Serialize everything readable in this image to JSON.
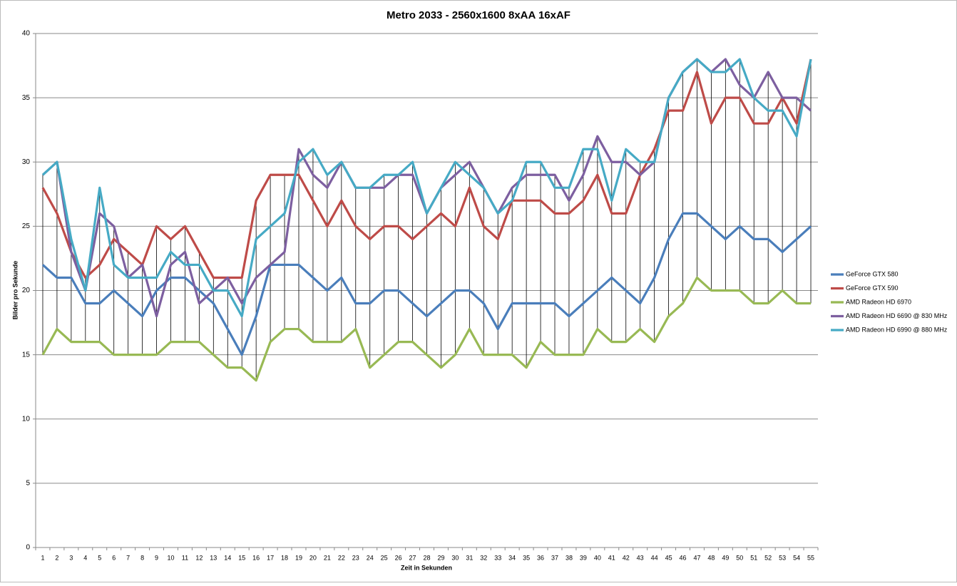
{
  "chart_data": {
    "type": "line",
    "title": "Metro 2033 - 2560x1600 8xAA 16xAF",
    "x_label": "Zeit in Sekunden",
    "y_label": "Bilder pro Sekunde",
    "categories": [
      1,
      2,
      3,
      4,
      5,
      6,
      7,
      8,
      9,
      10,
      11,
      12,
      13,
      14,
      15,
      16,
      17,
      18,
      19,
      20,
      21,
      22,
      23,
      24,
      25,
      26,
      27,
      28,
      29,
      30,
      31,
      32,
      33,
      34,
      35,
      36,
      37,
      38,
      39,
      40,
      41,
      42,
      43,
      44,
      45,
      46,
      47,
      48,
      49,
      50,
      51,
      52,
      53,
      54,
      55
    ],
    "ylim": [
      0,
      40
    ],
    "yticks": [
      0,
      5,
      10,
      15,
      20,
      25,
      30,
      35,
      40
    ],
    "grid": true,
    "high_low_lines": true,
    "legend": "right",
    "series": [
      {
        "name": "GeForce GTX 580",
        "color": "#4a7ebb",
        "values": [
          22,
          21,
          21,
          19,
          19,
          20,
          19,
          18,
          20,
          21,
          21,
          20,
          19,
          17,
          15,
          18,
          22,
          22,
          22,
          21,
          20,
          21,
          19,
          19,
          20,
          20,
          19,
          18,
          19,
          20,
          20,
          19,
          17,
          19,
          19,
          19,
          19,
          18,
          19,
          20,
          21,
          20,
          19,
          21,
          24,
          26,
          26,
          25,
          24,
          25,
          24,
          24,
          23,
          24,
          25
        ]
      },
      {
        "name": "GeForce GTX 590",
        "color": "#be4b48",
        "values": [
          28,
          26,
          23,
          21,
          22,
          24,
          23,
          22,
          25,
          24,
          25,
          23,
          21,
          21,
          21,
          27,
          29,
          29,
          29,
          27,
          25,
          27,
          25,
          24,
          25,
          25,
          24,
          25,
          26,
          25,
          28,
          25,
          24,
          27,
          27,
          27,
          26,
          26,
          27,
          29,
          26,
          26,
          29,
          31,
          34,
          34,
          37,
          33,
          35,
          35,
          33,
          33,
          35,
          33,
          38
        ]
      },
      {
        "name": "AMD Radeon HD 6970",
        "color": "#98b954",
        "values": [
          15,
          17,
          16,
          16,
          16,
          15,
          15,
          15,
          15,
          16,
          16,
          16,
          15,
          14,
          14,
          13,
          16,
          17,
          17,
          16,
          16,
          16,
          17,
          14,
          15,
          16,
          16,
          15,
          14,
          15,
          17,
          15,
          15,
          15,
          14,
          16,
          15,
          15,
          15,
          17,
          16,
          16,
          17,
          16,
          18,
          19,
          21,
          20,
          20,
          20,
          19,
          19,
          20,
          19,
          19
        ]
      },
      {
        "name": "AMD Radeon HD 6690 @ 830 MHz",
        "color": "#7d5fa0",
        "values": [
          29,
          30,
          23,
          20,
          26,
          25,
          21,
          22,
          18,
          22,
          23,
          19,
          20,
          21,
          19,
          21,
          22,
          23,
          31,
          29,
          28,
          30,
          28,
          28,
          28,
          29,
          29,
          26,
          28,
          29,
          30,
          28,
          26,
          28,
          29,
          29,
          29,
          27,
          29,
          32,
          30,
          30,
          29,
          30,
          35,
          37,
          38,
          37,
          38,
          36,
          35,
          37,
          35,
          35,
          34
        ]
      },
      {
        "name": "AMD Radeon HD 6990 @ 880 MHz",
        "color": "#46aac5",
        "values": [
          29,
          30,
          24,
          20,
          28,
          22,
          21,
          21,
          21,
          23,
          22,
          22,
          20,
          20,
          18,
          24,
          25,
          26,
          30,
          31,
          29,
          30,
          28,
          28,
          29,
          29,
          30,
          26,
          28,
          30,
          29,
          28,
          26,
          27,
          30,
          30,
          28,
          28,
          31,
          31,
          27,
          31,
          30,
          30,
          35,
          37,
          38,
          37,
          37,
          38,
          35,
          34,
          34,
          32,
          38
        ]
      }
    ]
  }
}
